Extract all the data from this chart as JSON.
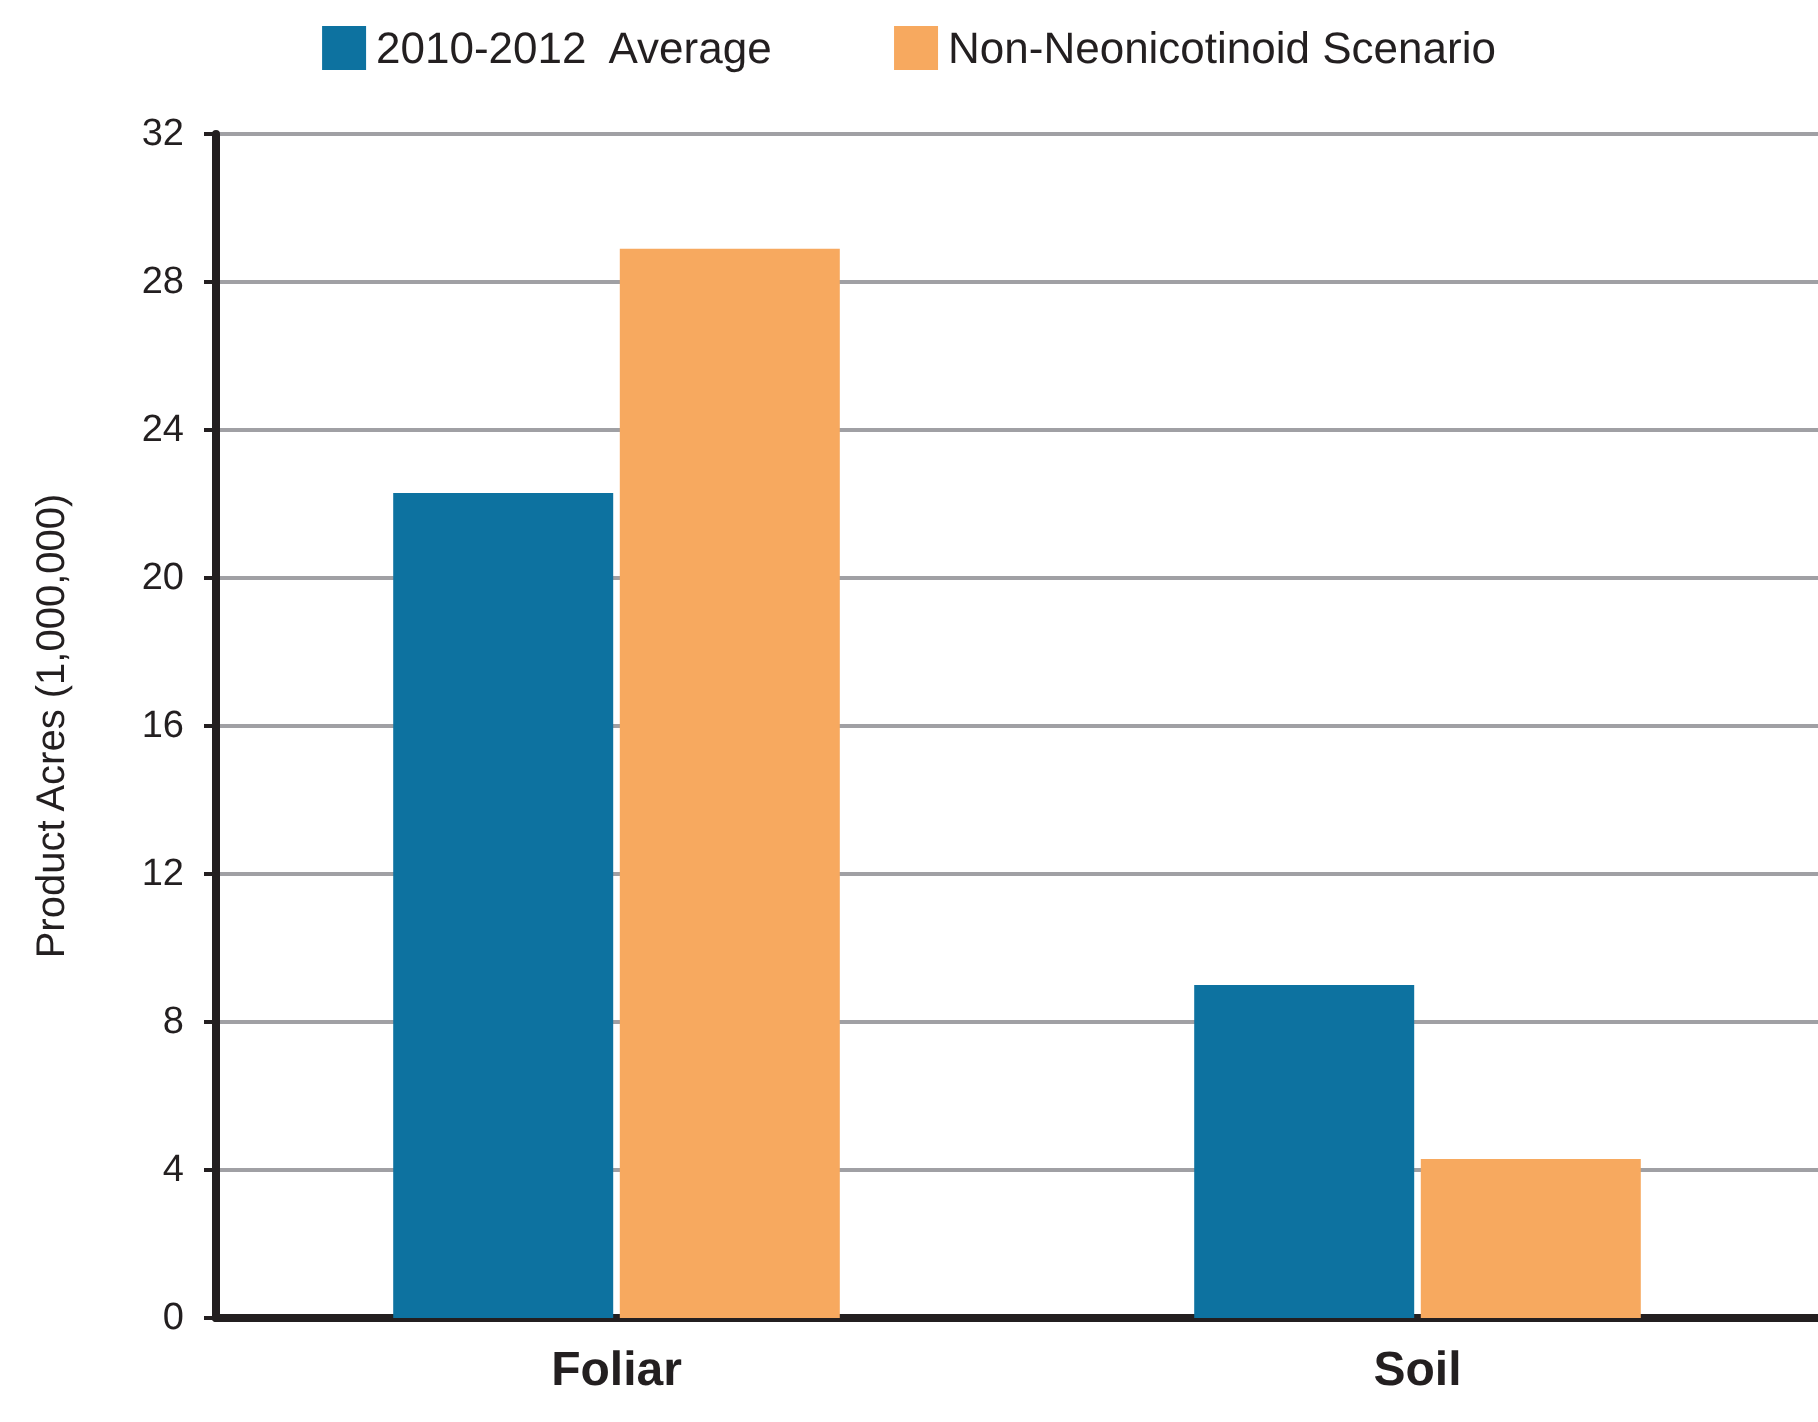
{
  "chart_data": {
    "type": "bar",
    "ylabel": "Product Acres (1,000,000)",
    "categories": [
      "Foliar",
      "Soil"
    ],
    "series": [
      {
        "name": "2010-2012  Average",
        "color": "#0d72a0",
        "values": [
          22.3,
          9.0
        ]
      },
      {
        "name": "Non-Neonicotinoid Scenario",
        "color": "#f7a95f",
        "values": [
          28.9,
          4.3
        ]
      }
    ],
    "ylim": [
      0,
      32
    ],
    "yticks": [
      0,
      4,
      8,
      12,
      16,
      20,
      24,
      28,
      32
    ],
    "grid": "y",
    "legend": "top"
  }
}
